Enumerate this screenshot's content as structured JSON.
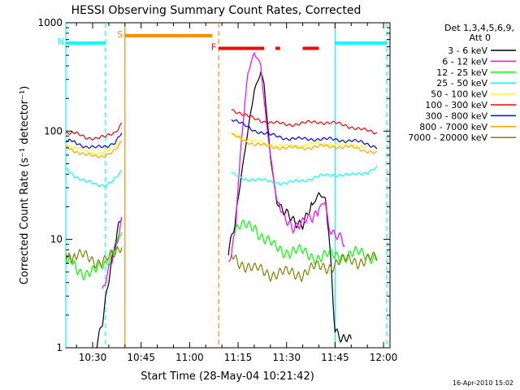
{
  "chart_data": {
    "type": "line",
    "title": "HESSI Observing Summary Count Rates, Corrected",
    "xlabel": "Start Time (28-May-04 10:21:42)",
    "ylabel": "Corrected Count Rate (s⁻¹ detector⁻¹)",
    "x_ticks": [
      "10:30",
      "10:45",
      "11:00",
      "11:15",
      "11:30",
      "11:45",
      "12:00"
    ],
    "y_ticks": [
      "1",
      "10",
      "100",
      "1000"
    ],
    "y_scale": "log",
    "ylim": [
      1,
      1000
    ],
    "xlim": [
      "10:21:42",
      "12:02"
    ],
    "grid": false,
    "legend_header": [
      "Det 1,3,4,5,6,9,",
      "Att 0"
    ],
    "legend_position": "right",
    "footer_date": "16-Apr-2010 15:02",
    "series": [
      {
        "name": "3 - 6 keV",
        "color": "#000000",
        "x": [
          "10:21:42",
          "10:26",
          "10:29",
          "10:31",
          "10:33",
          "10:35",
          "10:38",
          "10:39",
          "11:11",
          "11:12",
          "11:14",
          "11:16",
          "11:18",
          "11:20",
          "11:22",
          "11:23",
          "11:25",
          "11:27",
          "11:29",
          "11:32",
          "11:35",
          "11:38",
          "11:40",
          "11:42",
          "11:43",
          "11:45",
          "11:47",
          "11:50",
          "11:52"
        ],
        "y": [
          null,
          null,
          null,
          1.1,
          1.8,
          4,
          13,
          18,
          null,
          7,
          14,
          40,
          100,
          230,
          340,
          280,
          60,
          22,
          17,
          15,
          15,
          20,
          26,
          24,
          14,
          1.5,
          1.1,
          1.2,
          null
        ]
      },
      {
        "name": "6 - 12 keV",
        "color": "#ff00ff",
        "x": [
          "10:21:42",
          "10:30",
          "10:33",
          "10:35",
          "10:37",
          "10:39",
          "11:11",
          "11:12",
          "11:14",
          "11:16",
          "11:18",
          "11:20",
          "11:22",
          "11:23",
          "11:25",
          "11:27",
          "11:29",
          "11:32",
          "11:35",
          "11:38",
          "11:40",
          "11:42",
          "11:43",
          "11:45",
          "11:47",
          "11:48",
          "11:50"
        ],
        "y": [
          null,
          null,
          3,
          5,
          9,
          16,
          null,
          6,
          12,
          80,
          330,
          520,
          420,
          200,
          60,
          22,
          16,
          14,
          14,
          15,
          20,
          23,
          13,
          10,
          10,
          9,
          null
        ]
      },
      {
        "name": "12 - 25 keV",
        "color": "#00ff00",
        "x": [
          "10:21:42",
          "10:25",
          "10:28",
          "10:31",
          "10:34",
          "10:36",
          "10:38",
          "10:39",
          "11:11",
          "11:14",
          "11:17",
          "11:20",
          "11:23",
          "11:26",
          "11:30",
          "11:35",
          "11:40",
          "11:45",
          "11:50",
          "11:55",
          "11:58"
        ],
        "y": [
          6.5,
          5.5,
          5,
          5,
          6,
          8,
          10,
          12,
          null,
          12,
          13,
          14,
          10,
          8.5,
          8,
          7.5,
          7,
          7,
          7.5,
          7,
          7.5
        ]
      },
      {
        "name": "25 - 50 keV",
        "color": "#00ffff",
        "x": [
          "10:21:42",
          "10:25",
          "10:28",
          "10:31",
          "10:34",
          "10:37",
          "10:39",
          "11:11",
          "11:13",
          "11:17",
          "11:20",
          "11:25",
          "11:30",
          "11:35",
          "11:40",
          "11:45",
          "11:50",
          "11:55",
          "11:58"
        ],
        "y": [
          44,
          38,
          34,
          32,
          32,
          36,
          42,
          null,
          40,
          36,
          36,
          34,
          33,
          35,
          38,
          40,
          39,
          42,
          46
        ]
      },
      {
        "name": "50 - 100 keV",
        "color": "#ffff00",
        "x": [
          "10:21:42",
          "10:25",
          "10:28",
          "10:31",
          "10:34",
          "10:37",
          "10:39",
          "11:11",
          "11:13",
          "11:17",
          "11:20",
          "11:25",
          "11:30",
          "11:35",
          "11:40",
          "11:45",
          "11:50",
          "11:55",
          "11:58"
        ],
        "y": [
          75,
          70,
          65,
          63,
          64,
          72,
          85,
          null,
          95,
          85,
          80,
          75,
          72,
          74,
          76,
          76,
          75,
          72,
          68
        ]
      },
      {
        "name": "100 - 300 keV",
        "color": "#ff0000",
        "x": [
          "10:21:42",
          "10:25",
          "10:28",
          "10:31",
          "10:34",
          "10:37",
          "10:39",
          "11:11",
          "11:13",
          "11:17",
          "11:20",
          "11:25",
          "11:30",
          "11:35",
          "11:40",
          "11:45",
          "11:50",
          "11:55",
          "11:58"
        ],
        "y": [
          98,
          94,
          88,
          86,
          88,
          98,
          120,
          null,
          160,
          140,
          130,
          120,
          115,
          118,
          122,
          118,
          110,
          100,
          96
        ]
      },
      {
        "name": "300 - 800 keV",
        "color": "#0000ff",
        "x": [
          "10:21:42",
          "10:25",
          "10:28",
          "10:31",
          "10:34",
          "10:37",
          "10:39",
          "11:11",
          "11:13",
          "11:17",
          "11:20",
          "11:25",
          "11:30",
          "11:35",
          "11:40",
          "11:45",
          "11:50",
          "11:55",
          "11:58"
        ],
        "y": [
          82,
          78,
          72,
          70,
          72,
          80,
          96,
          null,
          130,
          112,
          102,
          92,
          86,
          84,
          85,
          83,
          82,
          76,
          72
        ]
      },
      {
        "name": "800 - 7000 keV",
        "color": "#ffa500",
        "x": [
          "10:21:42",
          "10:25",
          "10:28",
          "10:31",
          "10:34",
          "10:37",
          "10:39",
          "11:11",
          "11:13",
          "11:17",
          "11:20",
          "11:25",
          "11:30",
          "11:35",
          "11:40",
          "11:45",
          "11:50",
          "11:55",
          "11:58"
        ],
        "y": [
          70,
          65,
          60,
          58,
          60,
          66,
          78,
          null,
          92,
          82,
          76,
          72,
          70,
          70,
          72,
          72,
          71,
          66,
          62
        ]
      },
      {
        "name": "7000 - 20000 keV",
        "color": "#808000",
        "x": [
          "10:21:42",
          "10:25",
          "10:28",
          "10:31",
          "10:34",
          "10:37",
          "10:39",
          "11:11",
          "11:13",
          "11:17",
          "11:20",
          "11:25",
          "11:30",
          "11:35",
          "11:40",
          "11:45",
          "11:50",
          "11:55",
          "11:58"
        ],
        "y": [
          7.5,
          7,
          6.8,
          6.5,
          6.5,
          7,
          9,
          null,
          7,
          6,
          5.2,
          5,
          4.8,
          5,
          5.5,
          6,
          6.5,
          6.5,
          6.5
        ]
      }
    ],
    "markers": [
      {
        "label": "N",
        "color": "#00ffff",
        "start": "10:21:42",
        "end": "10:34",
        "y": 650,
        "style": "bar"
      },
      {
        "label": "",
        "color": "#00ffff",
        "start": "11:45",
        "end": "12:01",
        "y": 650,
        "style": "bar"
      },
      {
        "label": "S",
        "color": "#ff8c00",
        "start": "10:40",
        "end": "11:07",
        "y": 760,
        "style": "bar"
      },
      {
        "label": "F",
        "color": "#ff0000",
        "start": "11:09",
        "end": "11:28",
        "y": 580,
        "style": "dashes"
      },
      {
        "label": "",
        "color": "#ff0000",
        "start": "11:35",
        "end": "11:40",
        "y": 580,
        "style": "bar"
      }
    ],
    "vertical_lines": [
      {
        "x": "10:21:42",
        "color": "#00ffff",
        "style": "solid"
      },
      {
        "x": "10:34",
        "color": "#00ffff",
        "style": "dashed"
      },
      {
        "x": "10:40",
        "color": "#ff8c00",
        "style": "solid"
      },
      {
        "x": "11:09",
        "color": "#ff8c00",
        "style": "dashed"
      },
      {
        "x": "11:45",
        "color": "#00ffff",
        "style": "solid"
      },
      {
        "x": "12:01",
        "color": "#00ffff",
        "style": "dashed"
      }
    ],
    "data_gaps": [
      [
        "10:39",
        "11:11"
      ]
    ]
  }
}
